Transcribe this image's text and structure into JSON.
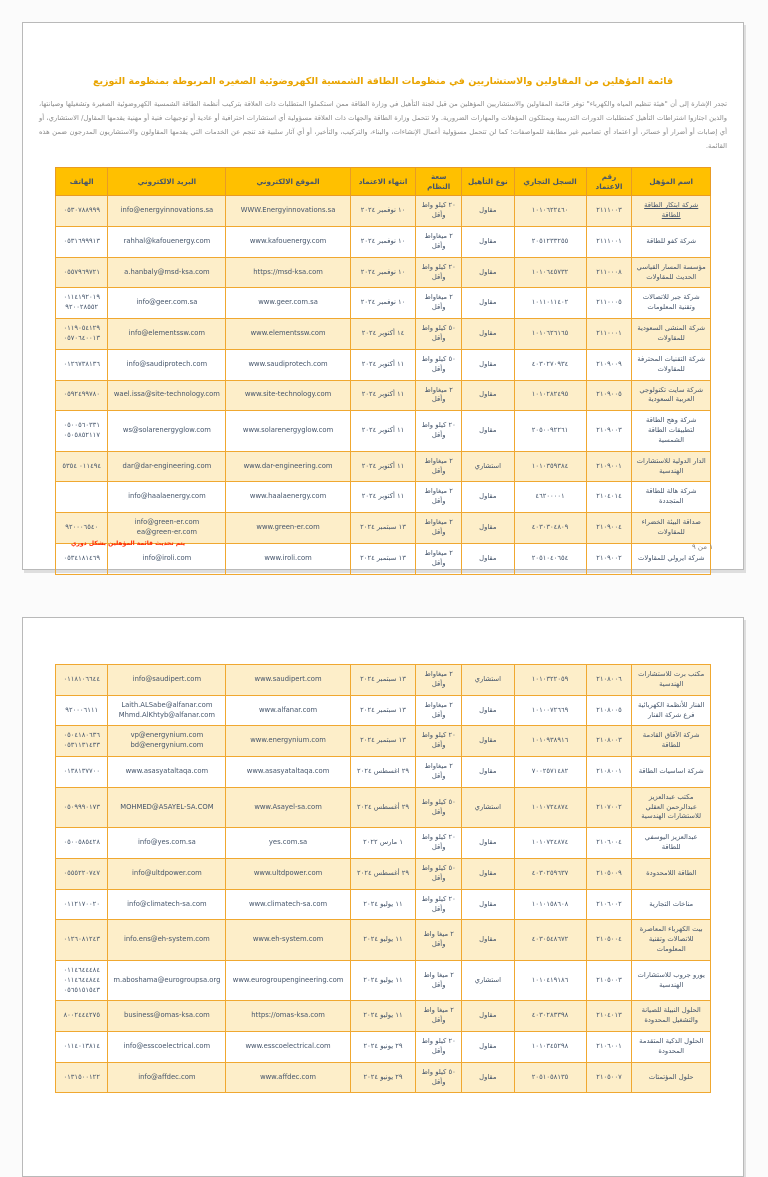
{
  "colors": {
    "header_bg": "#FFC000",
    "row_alt_bg": "#FDEEC9",
    "table_border": "#F0A830",
    "link_blue": "#2E74B5",
    "digits_orange": "#E8A33D",
    "title_orange": "#E9A400",
    "note_red": "#FF2A00"
  },
  "page1": {
    "title": "قائمة المؤهلين من المقاولين والاستشاريين في منظومات الطاقة الشمسية الكهروضوئية الصغيره المربوطة بمنظومة التوزيع",
    "intro": "تجدر الإشارة إلى أن \"هيئة تنظيم المياه والكهرباء\" توفر قائمة المقاولين والاستشاريين المؤهلين من قبل لجنة التأهيل في وزارة الطاقة ممن استكملوا المتطلبات ذات العلاقة بتركيب أنظمة الطاقة الشمسية الكهروضوئية الصغيرة وتشغيلها وصيانتها، والذين اجتازوا اشتراطات التأهيل كمتطلبات الدورات التدريبية ويمتلكون المؤهلات والمهارات الضرورية. ولا تتحمل وزارة الطاقة والجهات ذات العلاقة مسؤولية أي استشارات احترافية أو عادية أو توجيهات فنية أو مهنية يقدمها المقاول/ الاستشاري، أو أي إصابات أو أضرار أو خسائر، أو اعتماد أي تصاميم غير مطابقة للمواصفات؛ كما لن تتحمل مسؤولية أعمال الإنشاءات، والبناء، والتركيب، والتأخير، أو أي آثار سلبية قد تنجم عن الخدمات التي يقدمها المقاولون والاستشاريون المدرجون ضمن هذه القائمة.",
    "footer_note": "يتم تحديث قائمة المؤهلين بشكل دوري",
    "page_number": "١ من ٩"
  },
  "table": {
    "columns": [
      {
        "key": "name",
        "label": "اسم المؤهل",
        "width": "12%"
      },
      {
        "key": "acc_no",
        "label": "رقم الاعتماد",
        "width": "7%"
      },
      {
        "key": "cr",
        "label": "السجل التجاري",
        "width": "11%"
      },
      {
        "key": "type",
        "label": "نوع التأهيل",
        "width": "8%"
      },
      {
        "key": "capacity",
        "label": "سعة النظام",
        "width": "7%"
      },
      {
        "key": "expiry",
        "label": "انتهاء الاعتماد",
        "width": "10%"
      },
      {
        "key": "website",
        "label": "الموقع الالكتروني",
        "width": "19%"
      },
      {
        "key": "email",
        "label": "البريد الالكتروني",
        "width": "18%"
      },
      {
        "key": "phone",
        "label": "الهاتف",
        "width": "8%"
      }
    ],
    "page1_rows": [
      {
        "name": "شركة ابتكار الطاقة للطاقة",
        "name_link": true,
        "acc_no": "٢١١١٠٠٣",
        "cr": "١٠١٠٦٢٢٤٦٠",
        "type": "مقاول",
        "capacity": "٢٠ كيلو واط وأقل",
        "expiry": "١٠ نوفمبر ٢٠٢٤",
        "website": "WWW.Energyinnovations.sa",
        "email": "info@energyinnovations.sa",
        "phone": "٠٥٣٠٧٨٨٩٩٩"
      },
      {
        "name": "شركة كفو للطاقة",
        "acc_no": "٢١١١٠٠١",
        "cr": "٢٠٥١٢٣٣٢٥٥",
        "type": "مقاول",
        "capacity": "٢ ميغاواط وأقل",
        "expiry": "١٠ نوفمبر ٢٠٢٤",
        "website": "www.kafouenergy.com",
        "email": "rahhal@kafouenergy.com",
        "phone": "٠٥٣١٦٩٩٩١٣"
      },
      {
        "name": "مؤسسة المسار القياسي الحديث للمقاولات",
        "acc_no": "٢١١٠٠٠٨",
        "cr": "١٠١٠٦٤٥٧٣٢",
        "type": "مقاول",
        "capacity": "٢٠ كيلو واط وأقل",
        "expiry": "١٠ نوفمبر ٢٠٢٤",
        "website": "https://msd-ksa.com",
        "email": "a.hanbaly@msd-ksa.com",
        "phone": "٠٥٥٧٩٦٩٧٢١"
      },
      {
        "name": "شركة جبر للاتصالات وتقنية المعلومات",
        "acc_no": "٢١١٠٠٠٥",
        "cr": "١٠١١٠١١٤٠٢",
        "type": "مقاول",
        "capacity": "٢ ميغاواط وأقل",
        "expiry": "١٠ نوفمبر ٢٠٢٤",
        "website": "www.geer.com.sa",
        "email": "info@geer.com.sa",
        "phone": "٠١١٤١٩٢٠١٩\n٩٢٠٠٢٨٥٥٢"
      },
      {
        "name": "شركة المنشى السعودية للمقاولات",
        "acc_no": "٢١١٠٠٠١",
        "cr": "١٠١٠٦٢٦١٦٥",
        "type": "مقاول",
        "capacity": "٥٠ كيلو واط وأقل",
        "expiry": "١٤ أكتوبر ٢٠٢٤",
        "website": "www.elementssw.com",
        "email": "info@elementssw.com",
        "phone": "٠١١٩٠٥٤١٢٩\n٠٥٧٠٦٤٠٠١٣"
      },
      {
        "name": "شركة التقنيات المحترفة للمقاولات",
        "acc_no": "٢١٠٩٠٠٩",
        "cr": "٤٠٣٠٢٧٠٩٣٤",
        "type": "مقاول",
        "capacity": "٥٠ كيلو واط وأقل",
        "expiry": "١١ أكتوبر ٢٠٢٤",
        "website": "www.saudiprotech.com",
        "email": "info@saudiprotech.com",
        "phone": "٠١٢٦٧٣٨١٣٦"
      },
      {
        "name": "شركة سايت تكنولوجي العربية السعودية",
        "acc_no": "٢١٠٩٠٠٥",
        "cr": "١٠١٠٢٨٢٤٩٥",
        "type": "مقاول",
        "capacity": "٢ ميغاواط وأقل",
        "expiry": "١١ أكتوبر ٢٠٢٤",
        "website": "www.site-technology.com",
        "email": "wael.issa@site-technology.com",
        "phone": "٠٥٩٢٤٩٩٧٨٠"
      },
      {
        "name": "شركة وهج الطاقة لتطبيقات الطاقة الشمسية",
        "acc_no": "٢١٠٩٠٠٣",
        "cr": "٢٠٥٠٠٩٢٢٦١",
        "type": "مقاول",
        "capacity": "٢٠ كيلو واط وأقل",
        "expiry": "١١ أكتوبر ٢٠٢٤",
        "website": "www.solarenergyglow.com",
        "email": "ws@solarenergyglow.com",
        "phone": "٠٥٠٠٥٦٠٣٣١\n٠٥٠٥٨٥٢١١٧"
      },
      {
        "name": "الدار الدولية للاستشارات الهندسية",
        "acc_no": "٢١٠٩٠٠١",
        "cr": "١٠١٠٣٥٩٣٨٤",
        "type": "استشاري",
        "capacity": "٢ ميغاواط وأقل",
        "expiry": "١١ أكتوبر ٢٠٢٤",
        "website": "www.dar-engineering.com",
        "email": "dar@dar-engineering.com",
        "phone": "٠١١٤٩٤ ٥٣٥٤"
      },
      {
        "name": "شركة هالة للطاقة المتجددة",
        "acc_no": "٢١٠٤٠١٤",
        "cr": "٤٦٢٠٠٠٠١",
        "type": "مقاول",
        "capacity": "٢ ميغاواط وأقل",
        "expiry": "١١ أكتوبر ٢٠٢٤",
        "website": "www.haalaenergy.com",
        "email": "info@haalaenergy.com",
        "phone": ""
      },
      {
        "name": "صداقة البيئة الخضراء للمقاولات",
        "acc_no": "٢١٠٩٠٠٤",
        "cr": "٤٠٣٠٣٠٤٨٠٩",
        "type": "مقاول",
        "capacity": "٢ ميغاواط وأقل",
        "expiry": "١٣ سبتمبر ٢٠٢٤",
        "website": "www.green-er.com",
        "email": "info@green-er.com\nea@green-er.com",
        "phone": "٩٢٠٠٠٦٥٤٠"
      },
      {
        "name": "شركة ايرولي للمقاولات",
        "acc_no": "٢١٠٩٠٠٢",
        "cr": "٢٠٥١٠٤٠٦٥٤",
        "type": "مقاول",
        "capacity": "٢ ميغاواط وأقل",
        "expiry": "١٣ سبتمبر ٢٠٢٤",
        "website": "www.iroli.com",
        "email": "info@iroli.com",
        "phone": "٠٥٣٤١٨١٤٦٩"
      }
    ],
    "page2_rows": [
      {
        "name": "مكتب برت للاستشارات الهندسية",
        "acc_no": "٢١٠٨٠٠٦",
        "cr": "١٠١٠٣٢٢٠٥٩",
        "type": "استشاري",
        "capacity": "٢ ميغاواط وأقل",
        "expiry": "١٣ سبتمبر ٢٠٢٤",
        "website": "www.saudipert.com",
        "email": "info@saudipert.com",
        "phone": "٠١١٨١٠٦٦٤٤"
      },
      {
        "name": "الفنار للأنظمة الكهربائية فرع شركة الفنار",
        "acc_no": "٢١٠٨٠٠٥",
        "cr": "١٠١٠٠٧٢٦٦٩",
        "type": "مقاول",
        "capacity": "٢ ميغاواط وأقل",
        "expiry": "١٣ سبتمبر ٢٠٢٤",
        "website": "www.alfanar.com",
        "email": "Laith.ALSabe@alfanar.com\nMhmd.AlKhtyb@alfanar.com",
        "phone": "٩٢٠٠٠٦١١١"
      },
      {
        "name": "شركة الآفاق القادمة للطاقة",
        "acc_no": "٢١٠٨٠٠٣",
        "cr": "١٠١٠٩٣٨٩١٦",
        "type": "مقاول",
        "capacity": "٢٠ كيلو واط وأقل",
        "expiry": "١٣ سبتمبر ٢٠٢٤",
        "website": "www.energynium.com",
        "email": "vp@energynium.com\nbd@energynium.com",
        "phone": "٠٥٠٤١٨٠٦٣٦\n٠٥٣١١٣١٤٣٣"
      },
      {
        "name": "شركة اساسيات الطاقة",
        "acc_no": "٢١٠٨٠٠١",
        "cr": "٧٠٠٢٥٧١٤٨٢",
        "type": "مقاول",
        "capacity": "٢ ميغاواط وأقل",
        "expiry": "٢٩ اغسطس ٢٠٢٤",
        "website": "www.asasyataltaqa.com",
        "email": "www.asasyataltaqa.com",
        "phone": "٠١٣٨١٣٧٧٠٠"
      },
      {
        "name": "مكتب عبدالعزيز عبدالرحمن العقلي للاستشارات الهندسية",
        "acc_no": "٢١٠٧٠٠٢",
        "cr": "١٠١٠٧٢٤٨٧٤",
        "type": "استشاري",
        "capacity": "٥٠ كيلو واط وأقل",
        "expiry": "٢٩ أغسطس ٢٠٢٤",
        "website": "www.Asayel-sa.com",
        "email": "MOHMED@ASAYEL-SA.COM",
        "phone": "٠٥٠٩٩٩٠١٧٣"
      },
      {
        "name": "عبدالعزيز اليوسفي للطاقة",
        "acc_no": "٢١٠٦٠٠٤",
        "cr": "١٠١٠٧٢٤٨٧٤",
        "type": "مقاول",
        "capacity": "٢٠ كيلو واط وأقل",
        "expiry": "١ مارس ٢٠٢٢",
        "website": "yes.com.sa",
        "email": "info@yes.com.sa",
        "phone": "٠٥٠٠٥٨٥٤٢٨"
      },
      {
        "name": "الطاقة اللامحدودة",
        "acc_no": "٢١٠٥٠٠٩",
        "cr": "٤٠٣٠٢٥٩٦٣٧",
        "type": "مقاول",
        "capacity": "٥٠ كيلو واط وأقل",
        "expiry": "٢٩ أغسطس ٢٠٢٤",
        "website": "www.ultdpower.com",
        "website_big": true,
        "email": "info@ultdpower.com",
        "phone": "٠٥٥٥٢٢٠٧٤٧"
      },
      {
        "name": "مناخات التجارية",
        "acc_no": "٢١٠٦٠٠٢",
        "cr": "١٠١٠١٥٨٦٠٨",
        "type": "مقاول",
        "capacity": "٢٠ كيلو واط وأقل",
        "expiry": "١١ يوليو ٢٠٢٤",
        "website": "www.climatech-sa.com",
        "email": "info@climatech-sa.com",
        "phone": "٠١١٢١٧٠٠٢٠"
      },
      {
        "name": "بيت الكهرباء المعاصرة للاتصالات وتقنية المعلومات",
        "acc_no": "٢١٠٥٠٠٤",
        "cr": "٤٠٣٠٥٤٨٦٧٢",
        "type": "مقاول",
        "capacity": "٢ ميغا واط وأقل",
        "expiry": "١١ يوليو ٢٠٢٤",
        "website": "www.eh-system.com",
        "email": "info.ens@eh-system.com",
        "phone": "٠١٢٦٠٨١٢٤٣"
      },
      {
        "name": "يورو جروب للاستشارات الهندسية",
        "acc_no": "٢١٠٥٠٠٣",
        "cr": "١٠١٠٤١٩١٨٦",
        "type": "استشاري",
        "capacity": "٢ ميغا واط وأقل",
        "expiry": "١١ يوليو ٢٠٢٤",
        "website": "www.eurogroupengineering.com",
        "email": "m.aboshama@eurogroupsa.org",
        "phone": "٠١١٤٦٤٤٤٨٤\n٠١١٤٦٤٤٨٤٤\n٠٥٦٥١٥١٥٤٣"
      },
      {
        "name": "الحلول النبيلة للصيانة والتشغيل المحدودة",
        "acc_no": "٢١٠٤٠١٣",
        "cr": "٤٠٣٠٢٨٣٣٩٨",
        "type": "مقاول",
        "capacity": "٢ ميغا واط وأقل",
        "expiry": "١١ يوليو ٢٠٢٤",
        "website": "https://omas-ksa.com",
        "email": "business@omas-ksa.com",
        "phone": "٨٠٠٢٤٤٤٢٧٥"
      },
      {
        "name": "الحلول الذكية المتقدمة المحدودة",
        "acc_no": "٢١٠٦٠٠١",
        "cr": "١٠١٠٣٤٥٢٩٨",
        "type": "مقاول",
        "capacity": "٢٠ كيلو واط وأقل",
        "expiry": "٢٩ يونيو ٢٠٢٤",
        "website": "www.esscoelectrical.com",
        "email": "info@esscoelectrical.com",
        "phone": "٠١١٤٠١٣٨١٤"
      },
      {
        "name": "حلول المؤتمتات",
        "acc_no": "٢١٠٥٠٠٧",
        "cr": "٢٠٥١٠٥٨١٣٥",
        "type": "مقاول",
        "capacity": "٥٠ كيلو واط وأقل",
        "expiry": "٢٩ يونيو ٢٠٢٤",
        "website": "www.affdec.com",
        "email": "info@affdec.com",
        "phone": "٠١٣١٥٠٠١٢٢"
      }
    ]
  }
}
